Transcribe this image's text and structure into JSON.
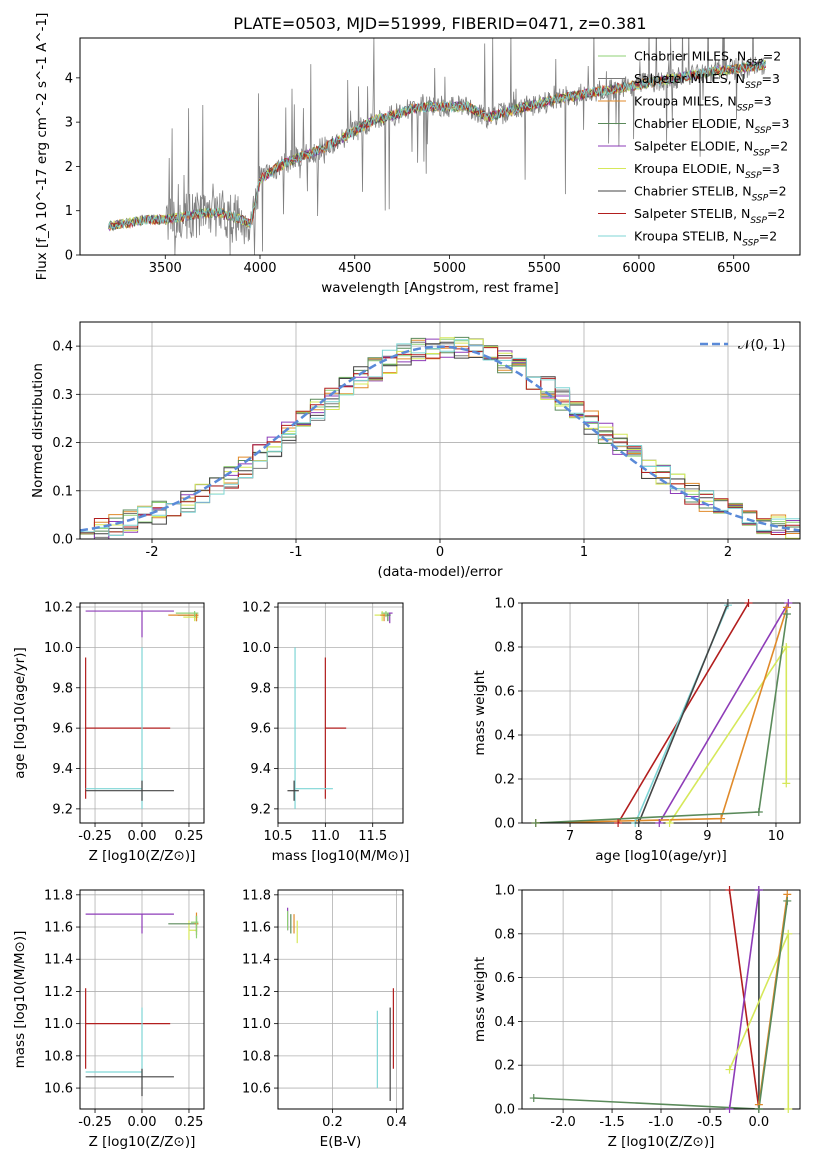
{
  "figure": {
    "title": "PLATE=0503, MJD=51999, FIBERID=0471, z=0.381",
    "series_colors": [
      "#8fd175",
      "#7b7b7b",
      "#e08a2a",
      "#5a8a5a",
      "#8e3cb8",
      "#d6e85a",
      "#444444",
      "#b21e1e",
      "#7fd6d6"
    ]
  },
  "chart_data": [
    {
      "id": "spectrum",
      "type": "line",
      "title": "PLATE=0503, MJD=51999, FIBERID=0471, z=0.381",
      "xlabel": "wavelength [Angstrom, rest frame]",
      "ylabel": "Flux [f_λ 10^-17 erg cm^-2 s^-1 A^-1]",
      "xlim": [
        3050,
        6850
      ],
      "ylim": [
        0,
        4.9
      ],
      "xticks": [
        3500,
        4000,
        4500,
        5000,
        5500,
        6000,
        6500
      ],
      "yticks": [
        0,
        1,
        2,
        3,
        4
      ],
      "grid": false,
      "legend": "top-right",
      "data_continuum": {
        "x": [
          3200,
          3400,
          3500,
          3700,
          3800,
          3900,
          3950,
          4000,
          4100,
          4200,
          4300,
          4400,
          4500,
          4600,
          4700,
          4800,
          4900,
          5000,
          5100,
          5200,
          5400,
          5600,
          5800,
          6000,
          6200,
          6400,
          6600,
          6670
        ],
        "y": [
          0.65,
          0.8,
          0.8,
          0.95,
          0.95,
          0.8,
          0.7,
          1.7,
          2.0,
          2.2,
          2.35,
          2.55,
          2.8,
          3.05,
          3.15,
          3.3,
          3.35,
          3.35,
          3.35,
          3.1,
          3.35,
          3.55,
          3.7,
          3.85,
          4.0,
          4.15,
          4.25,
          4.3
        ]
      },
      "series": [
        {
          "name": "Chabrier MILES, N_SSP=2"
        },
        {
          "name": "Salpeter MILES, N_SSP=3"
        },
        {
          "name": "Kroupa MILES, N_SSP=3"
        },
        {
          "name": "Chabrier ELODIE, N_SSP=3"
        },
        {
          "name": "Salpeter ELODIE, N_SSP=2"
        },
        {
          "name": "Kroupa ELODIE, N_SSP=3"
        },
        {
          "name": "Chabrier STELIB, N_SSP=2"
        },
        {
          "name": "Salpeter STELIB, N_SSP=2"
        },
        {
          "name": "Kroupa STELIB, N_SSP=2"
        }
      ]
    },
    {
      "id": "residuals",
      "type": "line",
      "xlabel": "(data-model)/error",
      "ylabel": "Normed distribution",
      "xlim": [
        -2.5,
        2.5
      ],
      "ylim": [
        0,
        0.45
      ],
      "xticks": [
        -2,
        -1,
        0,
        1,
        2
      ],
      "yticks": [
        0.0,
        0.1,
        0.2,
        0.3,
        0.4
      ],
      "grid": true,
      "legend": "top-right",
      "reference": {
        "name": "𝒩(0, 1)",
        "mean": 0.0,
        "sigma": 1.0
      },
      "bin_width": 0.1
    },
    {
      "id": "age-metal",
      "type": "scatter",
      "xlabel": "Z [log10(Z/Z⊙)]",
      "ylabel": "age  [log10(age/yr)]",
      "xlim": [
        -0.33,
        0.33
      ],
      "ylim": [
        9.13,
        10.22
      ],
      "xticks": [
        -0.25,
        0.0,
        0.25
      ],
      "yticks": [
        9.2,
        9.4,
        9.6,
        9.8,
        10.0,
        10.2
      ],
      "grid": true,
      "points": [
        {
          "series": 7,
          "x": -0.3,
          "y": 9.6,
          "xerr": [
            0.0,
            0.45
          ],
          "yerr": [
            0.35,
            0.35
          ]
        },
        {
          "series": 8,
          "x": 0.0,
          "y": 9.3,
          "xerr": [
            0.3,
            0.0
          ],
          "yerr": [
            0.1,
            0.7
          ]
        },
        {
          "series": 6,
          "x": 0.0,
          "y": 9.29,
          "xerr": [
            0.3,
            0.17
          ],
          "yerr": [
            0.05,
            0.05
          ]
        },
        {
          "series": 4,
          "x": 0.0,
          "y": 10.18,
          "xerr": [
            0.3,
            0.17
          ],
          "yerr": [
            0.13,
            0.0
          ]
        },
        {
          "series": 5,
          "x": 0.28,
          "y": 10.15,
          "xerr": [
            0.06,
            0.02
          ],
          "yerr": [
            0.02,
            0.02
          ]
        },
        {
          "series": 3,
          "x": 0.29,
          "y": 10.16,
          "xerr": [
            0.1,
            0.01
          ],
          "yerr": [
            0.03,
            0.01
          ]
        },
        {
          "series": 2,
          "x": 0.29,
          "y": 10.16,
          "xerr": [
            0.15,
            0.01
          ],
          "yerr": [
            0.03,
            0.01
          ]
        },
        {
          "series": 0,
          "x": 0.28,
          "y": 10.17,
          "xerr": [
            0.1,
            0.02
          ],
          "yerr": [
            0.02,
            0.01
          ]
        }
      ]
    },
    {
      "id": "age-mass",
      "type": "scatter",
      "xlabel": "mass [log10(M/M⊙)]",
      "ylabel": "",
      "xlim": [
        10.5,
        11.82
      ],
      "ylim": [
        9.13,
        10.22
      ],
      "xticks": [
        10.5,
        11.0,
        11.5
      ],
      "yticks": [
        9.2,
        9.4,
        9.6,
        9.8,
        10.0,
        10.2
      ],
      "grid": true,
      "points": [
        {
          "series": 7,
          "x": 11.0,
          "y": 9.6,
          "xerr": [
            0.0,
            0.22
          ],
          "yerr": [
            0.35,
            0.35
          ]
        },
        {
          "series": 8,
          "x": 10.68,
          "y": 9.3,
          "xerr": [
            0.0,
            0.4
          ],
          "yerr": [
            0.1,
            0.7
          ]
        },
        {
          "series": 6,
          "x": 10.67,
          "y": 9.29,
          "xerr": [
            0.07,
            0.05
          ],
          "yerr": [
            0.05,
            0.05
          ]
        },
        {
          "series": 4,
          "x": 11.68,
          "y": 10.17,
          "xerr": [
            0.03,
            0.03
          ],
          "yerr": [
            0.05,
            0.0
          ]
        },
        {
          "series": 5,
          "x": 11.6,
          "y": 10.16,
          "xerr": [
            0.08,
            0.04
          ],
          "yerr": [
            0.03,
            0.02
          ]
        },
        {
          "series": 3,
          "x": 11.66,
          "y": 10.16,
          "xerr": [
            0.05,
            0.03
          ],
          "yerr": [
            0.03,
            0.01
          ]
        },
        {
          "series": 2,
          "x": 11.62,
          "y": 10.16,
          "xerr": [
            0.04,
            0.03
          ],
          "yerr": [
            0.03,
            0.01
          ]
        },
        {
          "series": 0,
          "x": 11.64,
          "y": 10.17,
          "xerr": [
            0.05,
            0.03
          ],
          "yerr": [
            0.02,
            0.01
          ]
        }
      ]
    },
    {
      "id": "age-weight",
      "type": "line",
      "xlabel": "age  [log10(age/yr)]",
      "ylabel": "mass weight",
      "xlim": [
        6.3,
        10.35
      ],
      "ylim": [
        0,
        1
      ],
      "xticks": [
        7,
        8,
        9,
        10
      ],
      "yticks": [
        0.0,
        0.2,
        0.4,
        0.6,
        0.8,
        1.0
      ],
      "grid": true,
      "series": [
        {
          "series": 7,
          "x": [
            7.7,
            9.6
          ],
          "y": [
            0.0,
            1.0
          ]
        },
        {
          "series": 8,
          "x": [
            7.95,
            9.3
          ],
          "y": [
            0.0,
            0.99
          ]
        },
        {
          "series": 6,
          "x": [
            8.0,
            9.3
          ],
          "y": [
            0.0,
            1.0
          ]
        },
        {
          "series": 4,
          "x": [
            8.3,
            10.18
          ],
          "y": [
            0.0,
            1.0
          ]
        },
        {
          "series": 5,
          "x": [
            8.45,
            10.15,
            10.15
          ],
          "y": [
            0.0,
            0.8,
            0.18
          ]
        },
        {
          "series": 2,
          "x": [
            6.5,
            9.2,
            10.16
          ],
          "y": [
            0.0,
            0.02,
            0.98
          ]
        },
        {
          "series": 3,
          "x": [
            6.5,
            9.75,
            10.16
          ],
          "y": [
            0.0,
            0.05,
            0.95
          ]
        }
      ]
    },
    {
      "id": "mass-metal",
      "type": "scatter",
      "xlabel": "Z [log10(Z/Z⊙)]",
      "ylabel": "mass [log10(M/M⊙)]",
      "xlim": [
        -0.33,
        0.33
      ],
      "ylim": [
        10.47,
        11.83
      ],
      "xticks": [
        -0.25,
        0.0,
        0.25
      ],
      "yticks": [
        10.6,
        10.8,
        11.0,
        11.2,
        11.4,
        11.6,
        11.8
      ],
      "grid": true,
      "points": [
        {
          "series": 7,
          "x": -0.3,
          "y": 11.0,
          "xerr": [
            0.0,
            0.45
          ],
          "yerr": [
            0.28,
            0.22
          ]
        },
        {
          "series": 8,
          "x": 0.0,
          "y": 10.7,
          "xerr": [
            0.3,
            0.0
          ],
          "yerr": [
            0.05,
            0.4
          ]
        },
        {
          "series": 6,
          "x": 0.0,
          "y": 10.67,
          "xerr": [
            0.3,
            0.17
          ],
          "yerr": [
            0.12,
            0.05
          ]
        },
        {
          "series": 4,
          "x": 0.0,
          "y": 11.68,
          "xerr": [
            0.3,
            0.17
          ],
          "yerr": [
            0.12,
            0.0
          ]
        },
        {
          "series": 5,
          "x": 0.25,
          "y": 11.58,
          "xerr": [
            0.0,
            0.04
          ],
          "yerr": [
            0.06,
            0.06
          ]
        },
        {
          "series": 3,
          "x": 0.29,
          "y": 11.62,
          "xerr": [
            0.15,
            0.01
          ],
          "yerr": [
            0.05,
            0.05
          ]
        },
        {
          "series": 2,
          "x": 0.29,
          "y": 11.62,
          "xerr": [
            0.01,
            0.01
          ],
          "yerr": [
            0.07,
            0.07
          ]
        },
        {
          "series": 0,
          "x": 0.29,
          "y": 11.63,
          "xerr": [
            0.03,
            0.01
          ],
          "yerr": [
            0.1,
            0.04
          ]
        }
      ]
    },
    {
      "id": "mass-ebv",
      "type": "scatter",
      "xlabel": "E(B-V)",
      "ylabel": "",
      "xlim": [
        0.03,
        0.42
      ],
      "ylim": [
        10.47,
        11.83
      ],
      "xticks": [
        0.2,
        0.4
      ],
      "yticks": [
        10.6,
        10.8,
        11.0,
        11.2,
        11.4,
        11.6,
        11.8
      ],
      "grid": true,
      "points": [
        {
          "series": 7,
          "x": 0.39,
          "y": 11.0,
          "xerr": [
            0.0,
            0.0
          ],
          "yerr": [
            0.28,
            0.22
          ]
        },
        {
          "series": 8,
          "x": 0.34,
          "y": 10.7,
          "xerr": [
            0.0,
            0.0
          ],
          "yerr": [
            0.1,
            0.38
          ]
        },
        {
          "series": 6,
          "x": 0.38,
          "y": 10.72,
          "xerr": [
            0.0,
            0.0
          ],
          "yerr": [
            0.2,
            0.38
          ]
        },
        {
          "series": 4,
          "x": 0.06,
          "y": 11.68,
          "xerr": [
            0.0,
            0.0
          ],
          "yerr": [
            0.1,
            0.04
          ]
        },
        {
          "series": 5,
          "x": 0.09,
          "y": 11.58,
          "xerr": [
            0.0,
            0.0
          ],
          "yerr": [
            0.08,
            0.06
          ]
        },
        {
          "series": 3,
          "x": 0.07,
          "y": 11.62,
          "xerr": [
            0.0,
            0.0
          ],
          "yerr": [
            0.06,
            0.06
          ]
        },
        {
          "series": 2,
          "x": 0.08,
          "y": 11.62,
          "xerr": [
            0.0,
            0.0
          ],
          "yerr": [
            0.06,
            0.06
          ]
        },
        {
          "series": 0,
          "x": 0.06,
          "y": 11.64,
          "xerr": [
            0.0,
            0.0
          ],
          "yerr": [
            0.06,
            0.06
          ]
        }
      ]
    },
    {
      "id": "metal-weight",
      "type": "line",
      "xlabel": "Z [log10(Z/Z⊙)]",
      "ylabel": "mass weight",
      "xlim": [
        -2.42,
        0.42
      ],
      "ylim": [
        0,
        1
      ],
      "xticks": [
        -2.0,
        -1.5,
        -1.0,
        -0.5,
        0.0
      ],
      "yticks": [
        0.0,
        0.2,
        0.4,
        0.6,
        0.8,
        1.0
      ],
      "grid": true,
      "series": [
        {
          "series": 7,
          "x": [
            -0.3,
            0.0
          ],
          "y": [
            1.0,
            0.0
          ]
        },
        {
          "series": 8,
          "x": [
            0.0,
            0.0
          ],
          "y": [
            0.0,
            1.0
          ]
        },
        {
          "series": 6,
          "x": [
            0.0,
            0.0
          ],
          "y": [
            0.0,
            1.0
          ]
        },
        {
          "series": 4,
          "x": [
            -0.3,
            0.0
          ],
          "y": [
            0.0,
            1.0
          ]
        },
        {
          "series": 5,
          "x": [
            -0.3,
            0.3,
            0.3
          ],
          "y": [
            0.18,
            0.8,
            0.0
          ]
        },
        {
          "series": 2,
          "x": [
            0.0,
            0.29
          ],
          "y": [
            0.02,
            0.98
          ]
        },
        {
          "series": 3,
          "x": [
            -2.3,
            0.0,
            0.29
          ],
          "y": [
            0.05,
            0.0,
            0.95
          ]
        }
      ]
    }
  ]
}
